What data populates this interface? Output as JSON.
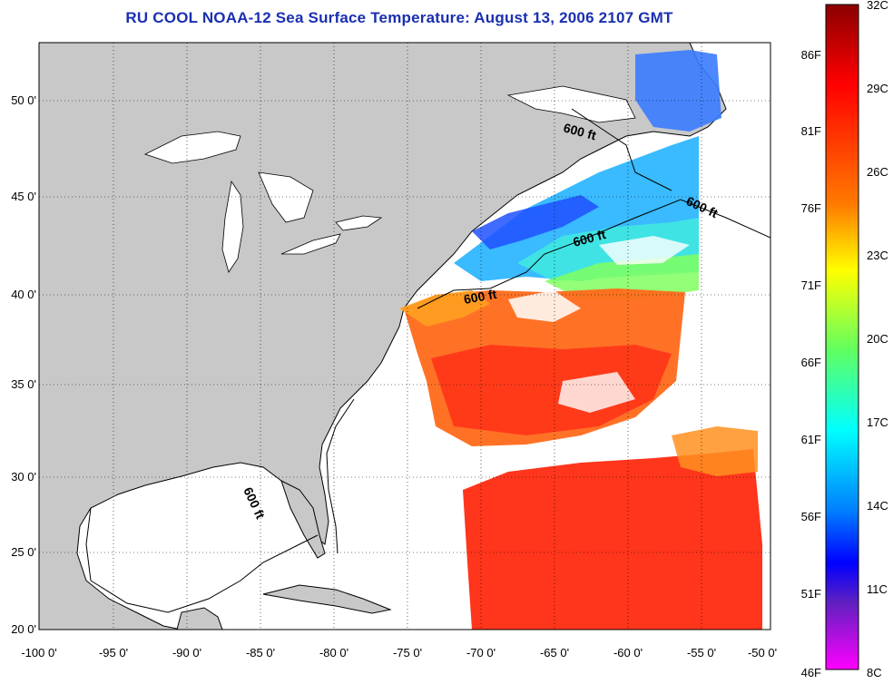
{
  "title": "RU COOL  NOAA-12  Sea Surface Temperature:  August 13, 2006 2107 GMT",
  "map": {
    "lon_range": [
      -100,
      -50
    ],
    "lat_range": [
      20,
      52
    ],
    "lon_ticks": [
      "-100 0'",
      "-95 0'",
      "-90 0'",
      "-85 0'",
      "-80 0'",
      "-75 0'",
      "-70 0'",
      "-65 0'",
      "-60 0'",
      "-55 0'",
      "-50 0'"
    ],
    "lat_ticks": [
      "20 0'",
      "25 0'",
      "30 0'",
      "35 0'",
      "40 0'",
      "45 0'",
      "50 0'"
    ],
    "grid": "dotted",
    "land_color": "#c8c8c8",
    "ocean_color": "#ffffff",
    "contour_labels": [
      "600 ft",
      "600 ft",
      "600 ft",
      "600 ft",
      "600 ft"
    ]
  },
  "colorbar": {
    "celsius_labels": [
      "32C",
      "29C",
      "26C",
      "23C",
      "20C",
      "17C",
      "14C",
      "11C",
      "8C"
    ],
    "fahrenheit_labels": [
      "86F",
      "81F",
      "76F",
      "71F",
      "66F",
      "61F",
      "56F",
      "51F",
      "46F"
    ],
    "range_c": [
      8,
      32
    ],
    "colors": [
      "#8b0000",
      "#ff0000",
      "#ff6a00",
      "#ffff00",
      "#80ff40",
      "#00ffff",
      "#0080ff",
      "#0000ff",
      "#ff00ff"
    ]
  }
}
